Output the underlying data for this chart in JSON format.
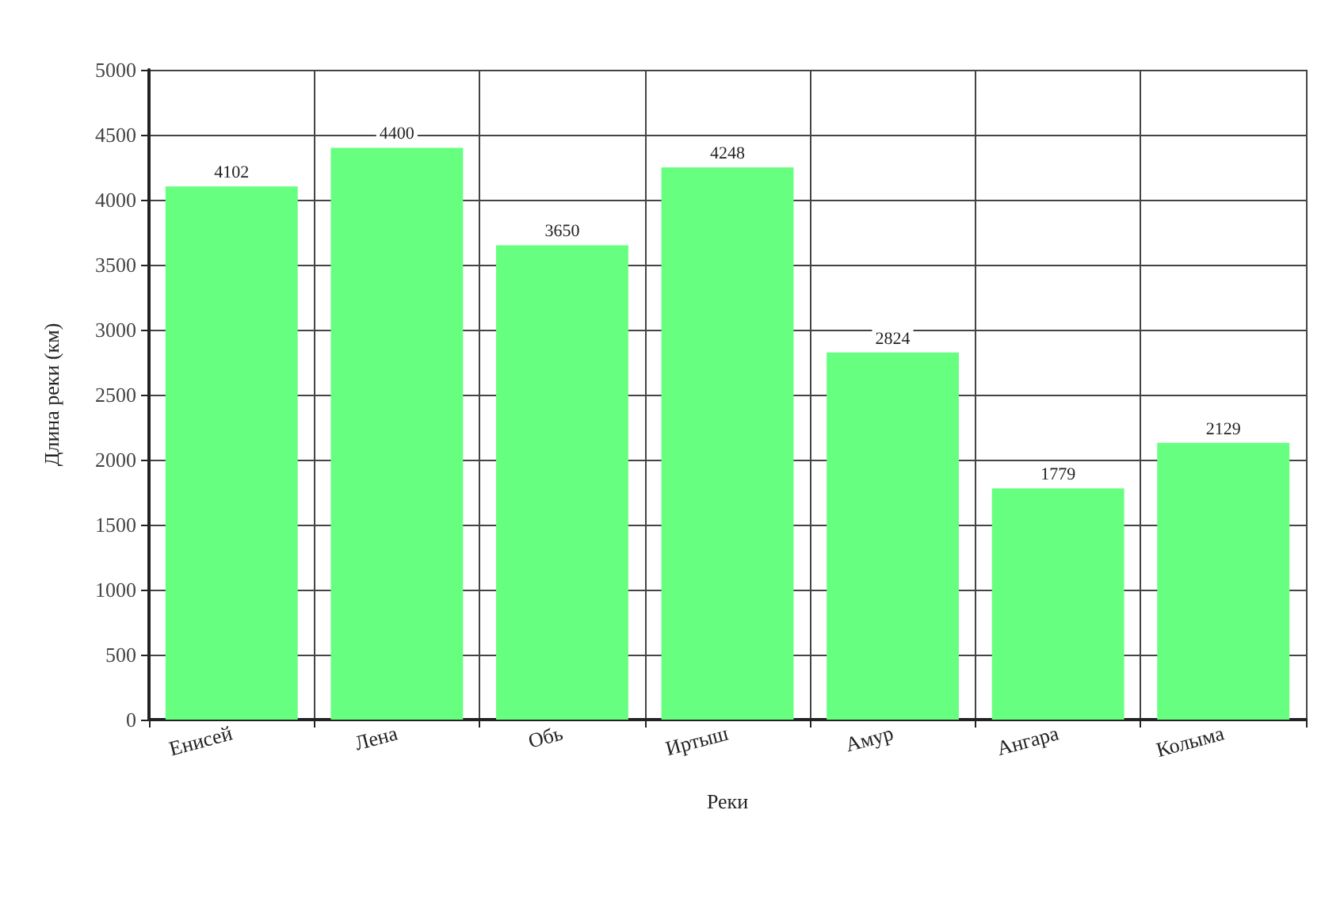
{
  "chart_data": {
    "type": "bar",
    "xlabel": "Реки",
    "ylabel": "Длина реки (км)",
    "categories": [
      "Енисей",
      "Лена",
      "Обь",
      "Иртыш",
      "Амур",
      "Ангара",
      "Колыма"
    ],
    "values": [
      4102,
      4400,
      3650,
      4248,
      2824,
      1779,
      2129
    ],
    "color": "#66ff80",
    "ylim": [
      0,
      5000
    ],
    "yticks": [
      0,
      500,
      1000,
      1500,
      2000,
      2500,
      3000,
      3500,
      4000,
      4500,
      5000
    ],
    "grid": true,
    "data_labels": true
  }
}
